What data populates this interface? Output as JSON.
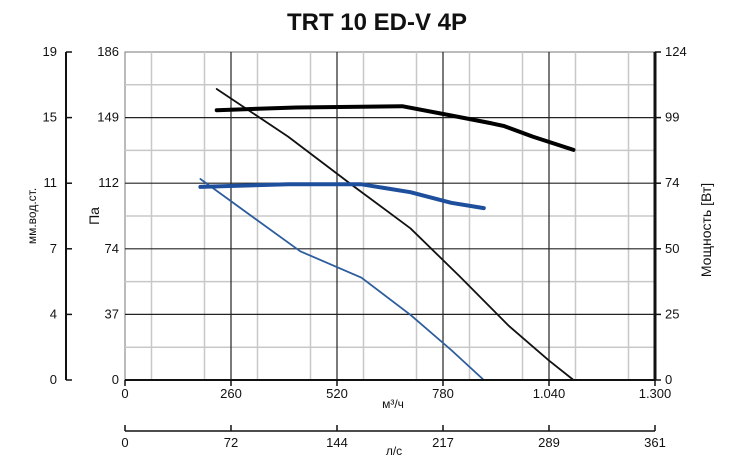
{
  "chart_data": {
    "type": "line",
    "title": "TRT 10 ED-V 4P",
    "xlabel": "м³/ч",
    "x2label": "л/с",
    "ylabel_left_outer": "мм.вод.ст.",
    "ylabel_left": "Па",
    "ylabel_right": "Мощность [Вт]",
    "xlim": [
      0,
      1300
    ],
    "ylim": [
      0,
      186
    ],
    "y2lim": [
      0,
      124
    ],
    "grid": true,
    "x_ticks": [
      "0",
      "260",
      "520",
      "780",
      "1.040",
      "1.300"
    ],
    "x2_ticks": [
      "0",
      "72",
      "144",
      "217",
      "289",
      "361"
    ],
    "y_ticks": [
      "0",
      "37",
      "74",
      "112",
      "149",
      "186"
    ],
    "y_outer_ticks": [
      "0",
      "4",
      "7",
      "11",
      "15",
      "19"
    ],
    "y2_ticks": [
      "0",
      "25",
      "50",
      "74",
      "99",
      "124"
    ],
    "series": [
      {
        "axis": "pressure",
        "color": "#111111",
        "x": [
          225,
          400,
          560,
          700,
          820,
          940,
          1040,
          1100
        ],
        "values": [
          165,
          138,
          110,
          86,
          59,
          31,
          11,
          0
        ]
      },
      {
        "axis": "pressure",
        "color": "#2d5d9d",
        "x": [
          185,
          310,
          430,
          580,
          700,
          800,
          880
        ],
        "values": [
          114,
          93,
          73,
          58,
          37,
          17,
          0
        ]
      },
      {
        "axis": "power",
        "color": "#000000",
        "x": [
          225,
          420,
          680,
          800,
          900,
          930,
          1000,
          1100
        ],
        "values": [
          102,
          103,
          103.5,
          100,
          97,
          96,
          92,
          87
        ]
      },
      {
        "axis": "power",
        "color": "#1e4f9c",
        "x": [
          185,
          400,
          580,
          700,
          800,
          880
        ],
        "values": [
          73,
          74,
          74,
          71,
          67,
          65
        ]
      }
    ]
  }
}
